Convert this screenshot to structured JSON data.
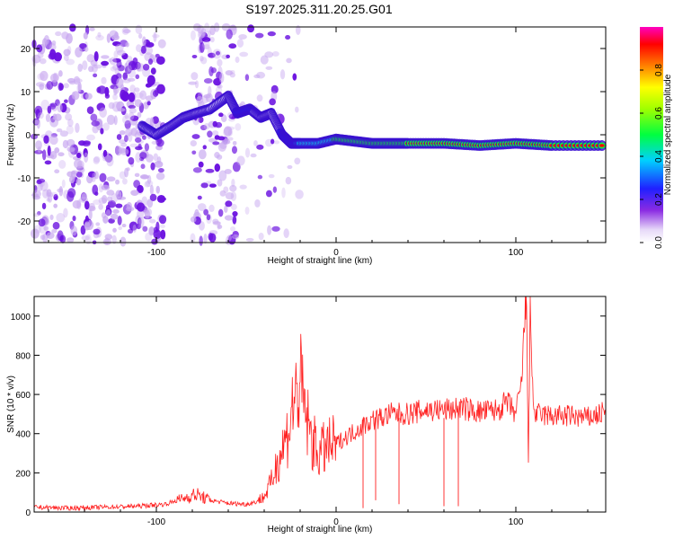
{
  "title": "S197.2025.311.20.25.G01",
  "colors": {
    "snr_line": "#ff2020",
    "spectral_dot": "#8a2be2",
    "frame": "#000000"
  },
  "chart_data": [
    {
      "type": "heatmap",
      "name": "spectrogram",
      "xlabel": "Height of straight line (km)",
      "ylabel": "Frequency (Hz)",
      "xlim": [
        -168,
        150
      ],
      "ylim": [
        -25,
        25
      ],
      "x_ticks": [
        -100,
        0,
        100
      ],
      "x_tick_labels": [
        "-100",
        "0",
        "100"
      ],
      "y_ticks": [
        -20,
        -10,
        0,
        10,
        20
      ],
      "y_tick_labels": [
        "-20",
        "-10",
        "0",
        "10",
        "20"
      ],
      "colorbar": {
        "label": "Normalized spectral amplitude",
        "range": [
          0,
          1
        ],
        "ticks": [
          0.0,
          0.2,
          0.4,
          0.6,
          0.8
        ],
        "tick_labels": [
          "0.0",
          "0.2",
          "0.4",
          "0.6",
          "0.8"
        ]
      },
      "ridge": {
        "description_points_x": [
          -108,
          -100,
          -92,
          -85,
          -78,
          -70,
          -60,
          -55,
          -48,
          -42,
          -36,
          -30,
          -25,
          -20,
          -10,
          0,
          10,
          20,
          30,
          40,
          60,
          80,
          100,
          120,
          150
        ],
        "frequency_hz": [
          2,
          0,
          2,
          4,
          5,
          6,
          9,
          5,
          6,
          4,
          5,
          0,
          -2,
          -2,
          -2,
          -1,
          -1.5,
          -2,
          -2,
          -2,
          -2,
          -2.5,
          -2,
          -2.5,
          -2.5
        ],
        "amplitude": [
          0.25,
          0.3,
          0.35,
          0.35,
          0.35,
          0.3,
          0.3,
          0.4,
          0.4,
          0.35,
          0.3,
          0.4,
          0.5,
          0.7,
          0.8,
          0.85,
          0.9,
          0.95,
          0.95,
          0.95,
          1.0,
          1.0,
          1.0,
          0.95,
          0.95
        ]
      }
    },
    {
      "type": "line",
      "name": "snr",
      "xlabel": "Height of straight line (km)",
      "ylabel": "SNR (10 * v/v)",
      "xlim": [
        -168,
        150
      ],
      "ylim": [
        0,
        1100
      ],
      "x_ticks": [
        -100,
        0,
        100
      ],
      "x_tick_labels": [
        "-100",
        "0",
        "100"
      ],
      "y_ticks": [
        0,
        200,
        400,
        600,
        800,
        1000
      ],
      "y_tick_labels": [
        "0",
        "200",
        "400",
        "600",
        "800",
        "1000"
      ],
      "series": [
        {
          "name": "SNR",
          "x": [
            -168,
            -150,
            -130,
            -110,
            -95,
            -85,
            -78,
            -70,
            -60,
            -50,
            -45,
            -40,
            -36,
            -33,
            -30,
            -27,
            -24,
            -20,
            -17,
            -14,
            -10,
            -5,
            0,
            5,
            10,
            15,
            20,
            25,
            30,
            40,
            50,
            60,
            70,
            80,
            90,
            95,
            100,
            103,
            105,
            106,
            107,
            108,
            110,
            120,
            130,
            140,
            150
          ],
          "y": [
            25,
            20,
            25,
            30,
            40,
            70,
            90,
            60,
            45,
            40,
            50,
            80,
            150,
            250,
            320,
            400,
            550,
            650,
            500,
            380,
            300,
            330,
            350,
            380,
            410,
            440,
            470,
            480,
            500,
            500,
            520,
            520,
            530,
            510,
            520,
            560,
            500,
            640,
            980,
            1100,
            250,
            1020,
            500,
            490,
            490,
            480,
            510
          ]
        }
      ],
      "drops": [
        {
          "x": 15,
          "y": 20
        },
        {
          "x": 22,
          "y": 60
        },
        {
          "x": 35,
          "y": 40
        },
        {
          "x": 60,
          "y": 30
        },
        {
          "x": 68,
          "y": 30
        }
      ]
    }
  ]
}
